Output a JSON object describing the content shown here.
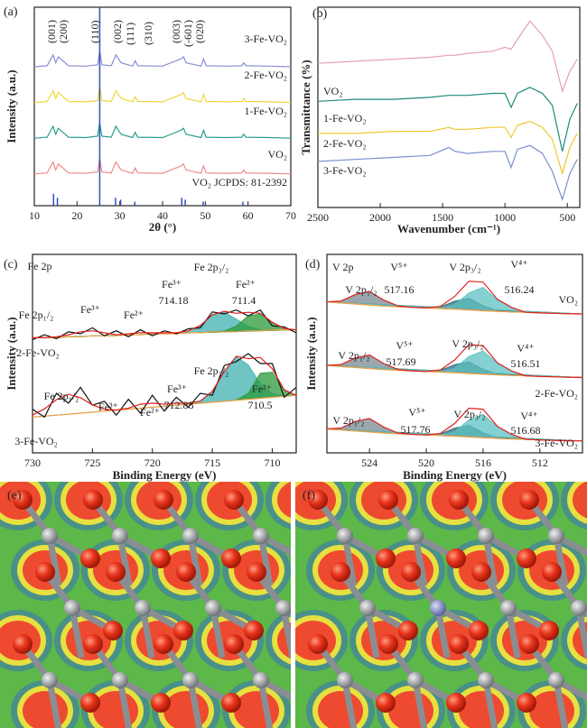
{
  "chart_data": [
    {
      "label": "(a)",
      "type": "line",
      "xlabel": "2θ (°)",
      "ylabel": "Intensity (a.u.)",
      "xlim": [
        10,
        70
      ],
      "xticks": [
        10,
        20,
        30,
        40,
        50,
        60,
        70
      ],
      "ylim": [
        0,
        100
      ],
      "x": [
        10,
        13,
        14.4,
        15,
        15.6,
        18,
        22,
        24.8,
        25.3,
        25.8,
        28,
        29.1,
        29.7,
        30.3,
        33,
        33.6,
        34.2,
        40,
        44.3,
        44.9,
        45.5,
        49,
        49.6,
        50.2,
        55,
        58.5,
        59,
        59.5,
        65,
        70
      ],
      "series": [
        {
          "name": "3-Fe-VO₂",
          "color": "#8a8fd6",
          "values": [
            70,
            70.5,
            76,
            72,
            75,
            70.5,
            70.3,
            71,
            78,
            71,
            70.5,
            76,
            74,
            72,
            70.3,
            73,
            70.5,
            70.3,
            74,
            75,
            72,
            70.3,
            74,
            70.5,
            70.3,
            70.5,
            72,
            70.5,
            70.3,
            70
          ]
        },
        {
          "name": "2-Fe-VO₂",
          "color": "#f2d53c",
          "values": [
            52,
            52.5,
            58,
            54,
            57,
            52.5,
            52.3,
            53,
            60,
            53,
            52.5,
            58,
            56,
            54,
            52.3,
            55,
            52.5,
            52.3,
            56,
            57,
            54,
            52.3,
            56,
            52.5,
            52.3,
            52.5,
            54,
            52.5,
            52.3,
            52
          ]
        },
        {
          "name": "1-Fe-VO₂",
          "color": "#2a9d8f",
          "values": [
            34,
            34.5,
            40,
            36,
            39,
            34.5,
            34.3,
            35,
            42,
            35,
            34.5,
            40,
            38,
            36,
            34.3,
            37,
            34.5,
            34.3,
            38,
            39,
            36,
            34.3,
            38,
            34.5,
            34.3,
            34.5,
            36,
            34.5,
            34.3,
            34
          ]
        },
        {
          "name": "VO₂",
          "color": "#f08a8a",
          "values": [
            16,
            16.5,
            22,
            18,
            21,
            16.5,
            16.3,
            17,
            24,
            17,
            16.5,
            22,
            20,
            18,
            16.3,
            19,
            16.5,
            16.3,
            20,
            21,
            18,
            16.3,
            20,
            16.5,
            16.3,
            16.5,
            18,
            16.5,
            16.3,
            16
          ]
        }
      ],
      "stems": {
        "name": "VO₂ JCPDS: 81-2392",
        "color": "#3050c0",
        "x": [
          14.5,
          15.4,
          25.3,
          29,
          30.2,
          33.5,
          44.5,
          45.3,
          49.5,
          58.8
        ],
        "values": [
          6,
          4,
          100,
          4,
          3,
          2,
          4,
          3,
          2,
          2
        ]
      },
      "annotations": [
        "(001)",
        "(200)",
        "(110)",
        "(002)",
        "(111)",
        "(310)",
        "(003)",
        "(-601)",
        "(020)"
      ]
    },
    {
      "label": "(b)",
      "type": "line",
      "xlabel": "Wavenumber (cm⁻¹)",
      "ylabel": "Transmittance (%)",
      "xlim": [
        2500,
        400
      ],
      "xticks": [
        2500,
        2000,
        1500,
        1000,
        500
      ],
      "ylim": [
        0,
        100
      ],
      "x": [
        2500,
        2200,
        1900,
        1600,
        1450,
        1400,
        1300,
        1100,
        1000,
        950,
        900,
        800,
        700,
        620,
        540,
        480,
        420
      ],
      "series": [
        {
          "name": "VO₂",
          "color": "#e8a0b0",
          "values": [
            72,
            73,
            74,
            75,
            76,
            76,
            77,
            78,
            80,
            79,
            84,
            93,
            86,
            78,
            58,
            68,
            74
          ]
        },
        {
          "name": "1-Fe-VO₂",
          "color": "#1e8a7a",
          "values": [
            53,
            54,
            54,
            55,
            56,
            56,
            56,
            57,
            57,
            50,
            57,
            60,
            57,
            51,
            28,
            44,
            52
          ]
        },
        {
          "name": "2-Fe-VO₂",
          "color": "#f0c830",
          "values": [
            37,
            37,
            38,
            38,
            40,
            39,
            39,
            40,
            40,
            35,
            41,
            43,
            40,
            34,
            17,
            30,
            37
          ]
        },
        {
          "name": "3-Fe-VO₂",
          "color": "#7b8fd0",
          "values": [
            23,
            24,
            25,
            26,
            30,
            28,
            27,
            28,
            28,
            20,
            29,
            31,
            27,
            18,
            4,
            17,
            24
          ]
        }
      ]
    },
    {
      "label": "(c)",
      "type": "line",
      "xlabel": "Binding Energy (eV)",
      "ylabel": "Intensity (a.u.)",
      "xlim": [
        730,
        708
      ],
      "xticks": [
        730,
        725,
        720,
        715,
        710
      ],
      "ylim": [
        0,
        100
      ],
      "x": [
        730,
        729,
        728,
        727,
        726,
        725,
        724,
        723,
        722,
        721,
        720,
        719,
        718,
        717,
        716,
        715,
        714,
        713,
        712,
        711,
        710,
        709,
        708
      ],
      "series": [
        {
          "color": "#40b0b0",
          "fill": true,
          "values": [
            58,
            58,
            58,
            58.5,
            58.5,
            59,
            59,
            59,
            59.5,
            59.5,
            60,
            60,
            60,
            61.4,
            64.2,
            69.2,
            70.9,
            67.4,
            63.7,
            61.9,
            62,
            62,
            62
          ]
        },
        {
          "color": "#2a9a3a",
          "fill": true,
          "values": [
            58,
            58,
            58,
            58.5,
            58.5,
            59,
            59,
            59,
            59.5,
            59.5,
            60,
            60,
            60,
            60.5,
            60.5,
            61,
            61.4,
            63.9,
            69.1,
            69.9,
            65.8,
            62.7,
            62
          ]
        },
        {
          "color": "#f0a040",
          "values": [
            58,
            58,
            58,
            58.5,
            58.5,
            59,
            59,
            59,
            59.5,
            59.5,
            60,
            60,
            60,
            60.5,
            60.5,
            61,
            61,
            61,
            61.5,
            61.5,
            62,
            62,
            62
          ]
        },
        {
          "color": "#111111",
          "values": [
            57,
            59.5,
            57.5,
            61,
            60,
            63,
            59,
            61.5,
            58.5,
            62,
            59,
            61.5,
            60,
            62.5,
            63,
            71,
            70,
            72,
            69,
            72,
            64,
            63.5,
            60.5
          ]
        },
        {
          "color": "#e02020",
          "values": [
            58,
            58,
            58.5,
            59.5,
            61,
            61.5,
            60.5,
            59.5,
            60,
            60.5,
            60.5,
            60.5,
            60.5,
            61.5,
            64.2,
            69.6,
            71.3,
            70.3,
            70.8,
            70.3,
            65.8,
            62.7,
            62
          ]
        },
        {
          "color": "#40b0b0",
          "fill": true,
          "values": [
            18,
            18.5,
            19,
            19.5,
            20,
            20.5,
            21,
            21.5,
            22,
            22.5,
            23,
            23.5,
            24,
            24.5,
            26.1,
            31,
            41,
            48.5,
            44.3,
            34.9,
            29.7,
            28.7,
            29
          ]
        },
        {
          "color": "#2a9a3a",
          "fill": true,
          "values": [
            18,
            18.5,
            19,
            19.5,
            20,
            20.5,
            21,
            21.5,
            22,
            22.5,
            23,
            23.5,
            24,
            24.5,
            25,
            25.5,
            26,
            26.7,
            30.1,
            40.2,
            40.7,
            31.6,
            29
          ]
        },
        {
          "color": "#f0a040",
          "values": [
            18,
            18.5,
            19,
            19.5,
            20,
            20.5,
            21,
            21.5,
            22,
            22.5,
            23,
            23.5,
            24,
            24.5,
            25,
            25.5,
            26,
            26.5,
            27,
            27.5,
            28,
            28.5,
            29
          ]
        },
        {
          "color": "#111111",
          "values": [
            22,
            18,
            30,
            25,
            33,
            24,
            26,
            19,
            27,
            20,
            29,
            21,
            28,
            23,
            30,
            29,
            44,
            46,
            50,
            45,
            45,
            28,
            33
          ]
        },
        {
          "color": "#e02020",
          "values": [
            19,
            22.2,
            26.8,
            29.5,
            27.8,
            24.2,
            22,
            21.6,
            22.5,
            24.5,
            25,
            24.5,
            25,
            25,
            26.1,
            31,
            41,
            48.7,
            47.4,
            48.1,
            42.4,
            31.8,
            29
          ]
        }
      ],
      "annotations": [
        "Fe 2p",
        "Fe 2p₁/₂",
        "Fe³⁺",
        "Fe²⁺",
        "Fe³⁺",
        "714.18",
        "Fe 2p₃/₂",
        "Fe²⁺",
        "711.4",
        "2-Fe-VO₂",
        "Fe 2p₃/₂",
        "Fe³⁺",
        "712.88",
        "Fe²⁺",
        "710.5",
        "Fe 2p₁/₂",
        "Fe³⁺",
        "Fe²⁺",
        "3-Fe-VO₂"
      ]
    },
    {
      "label": "(d)",
      "type": "line",
      "xlabel": "Binding Energy (eV)",
      "ylabel": "Intensity (a.u.)",
      "xlim": [
        527,
        509
      ],
      "xticks": [
        524,
        520,
        516,
        512
      ],
      "ylim": [
        0,
        100
      ],
      "x": [
        527,
        526,
        525,
        524,
        523,
        522,
        521,
        520,
        519,
        518,
        517,
        516,
        515,
        514,
        513,
        512,
        511,
        510,
        509
      ],
      "series": [
        {
          "color": "#7a8a94",
          "fill": true,
          "values": [
            76.1,
            76.5,
            79.8,
            81.3,
            77,
            74,
            73.3,
            73,
            72.7,
            72.4,
            72,
            71.6,
            71.3,
            71,
            70.8,
            70.5,
            70.3,
            70.1,
            70
          ]
        },
        {
          "color": "#2a6a7a",
          "fill": true,
          "values": [
            76,
            75.5,
            75,
            74.5,
            74,
            73.6,
            73.3,
            73,
            73.6,
            76.5,
            77.9,
            74.2,
            71.6,
            71,
            70.8,
            70.5,
            70.3,
            70.1,
            70
          ]
        },
        {
          "color": "#5cc0c0",
          "fill": true,
          "values": [
            76,
            75.5,
            75,
            74.5,
            74,
            73.6,
            73.3,
            73,
            72.9,
            74.7,
            80.6,
            83.4,
            77.1,
            73.3,
            70.8,
            70.5,
            70.3,
            70.1,
            70
          ]
        },
        {
          "color": "#f0a040",
          "values": [
            76,
            75.5,
            75,
            74.5,
            74,
            73.6,
            73.3,
            73,
            72.7,
            72.4,
            72,
            71.6,
            71.3,
            71,
            70.8,
            70.5,
            70.3,
            70.1,
            70
          ]
        },
        {
          "color": "#e02020",
          "values": [
            76.1,
            76.5,
            79.8,
            81.3,
            77,
            74,
            73.3,
            73,
            73.8,
            78.8,
            86.5,
            86,
            77.4,
            73.3,
            70.8,
            70.5,
            70.3,
            70.1,
            70
          ]
        },
        {
          "color": "#7a8a94",
          "fill": true,
          "values": [
            44.1,
            44.5,
            47.8,
            49.3,
            45,
            42,
            41.3,
            41,
            40.7,
            40.4,
            40,
            39.6,
            39.3,
            39,
            38.8,
            38.5,
            38.3,
            38.1,
            38
          ]
        },
        {
          "color": "#2a6a7a",
          "fill": true,
          "values": [
            44,
            43.5,
            43,
            42.5,
            42,
            41.6,
            41.3,
            41,
            41.6,
            44.5,
            45.9,
            42.2,
            39.6,
            39,
            38.8,
            38.5,
            38.3,
            38.1,
            38
          ]
        },
        {
          "color": "#5cc0c0",
          "fill": true,
          "values": [
            44,
            43.5,
            43,
            42.5,
            42,
            41.6,
            41.3,
            41,
            40.9,
            42.7,
            48.6,
            51.4,
            45.1,
            41.3,
            38.8,
            38.5,
            38.3,
            38.1,
            38
          ]
        },
        {
          "color": "#f0a040",
          "values": [
            44,
            43.5,
            43,
            42.5,
            42,
            41.6,
            41.3,
            41,
            40.7,
            40.4,
            40,
            39.6,
            39.3,
            39,
            38.8,
            38.5,
            38.3,
            38.1,
            38
          ]
        },
        {
          "color": "#e02020",
          "values": [
            44.1,
            44.5,
            47.8,
            49.3,
            45,
            42,
            41.3,
            41,
            41.8,
            46.8,
            54.5,
            54,
            45.4,
            41.3,
            38.8,
            38.5,
            38.3,
            38.1,
            38
          ]
        },
        {
          "color": "#7a8a94",
          "fill": true,
          "values": [
            12.1,
            12.5,
            15.8,
            17.3,
            13,
            10,
            9.3,
            9,
            8.7,
            8.4,
            8,
            7.6,
            7.3,
            7,
            6.8,
            6.5,
            6.3,
            6.1,
            6
          ]
        },
        {
          "color": "#2a6a7a",
          "fill": true,
          "values": [
            12,
            11.5,
            11,
            10.5,
            10,
            9.6,
            9.3,
            9,
            9.6,
            12.5,
            13.9,
            10.2,
            7.6,
            7,
            6.8,
            6.5,
            6.3,
            6.1,
            6
          ]
        },
        {
          "color": "#5cc0c0",
          "fill": true,
          "values": [
            12,
            11.5,
            11,
            10.5,
            10,
            9.6,
            9.3,
            9,
            8.9,
            10.7,
            16.6,
            19.4,
            13.1,
            9.3,
            6.8,
            6.5,
            6.3,
            6.1,
            6
          ]
        },
        {
          "color": "#f0a040",
          "values": [
            12,
            11.5,
            11,
            10.5,
            10,
            9.6,
            9.3,
            9,
            8.7,
            8.4,
            8,
            7.6,
            7.3,
            7,
            6.8,
            6.5,
            6.3,
            6.1,
            6
          ]
        },
        {
          "color": "#e02020",
          "values": [
            12.1,
            12.5,
            15.8,
            17.3,
            13,
            10,
            9.3,
            9,
            9.8,
            14.8,
            22.5,
            22,
            13.4,
            9.3,
            6.8,
            6.5,
            6.3,
            6.1,
            6
          ]
        }
      ],
      "annotations": [
        "V 2p",
        "V 2p₁/₂",
        "V⁵⁺",
        "517.16",
        "V 2p₃/₂",
        "V⁴⁺",
        "516.24",
        "VO₂",
        "V⁵⁺",
        "517.69",
        "V 2p₃/₂",
        "V⁴⁺",
        "516.51",
        "V 2p₁/₂",
        "2-Fe-VO₂",
        "V⁵⁺",
        "517.76",
        "V 2p₃/₂",
        "V⁴⁺",
        "516.68",
        "V 2p₁/₂",
        "3-Fe-VO₂"
      ]
    }
  ],
  "images": [
    {
      "label": "(e)"
    },
    {
      "label": "(f)"
    }
  ]
}
